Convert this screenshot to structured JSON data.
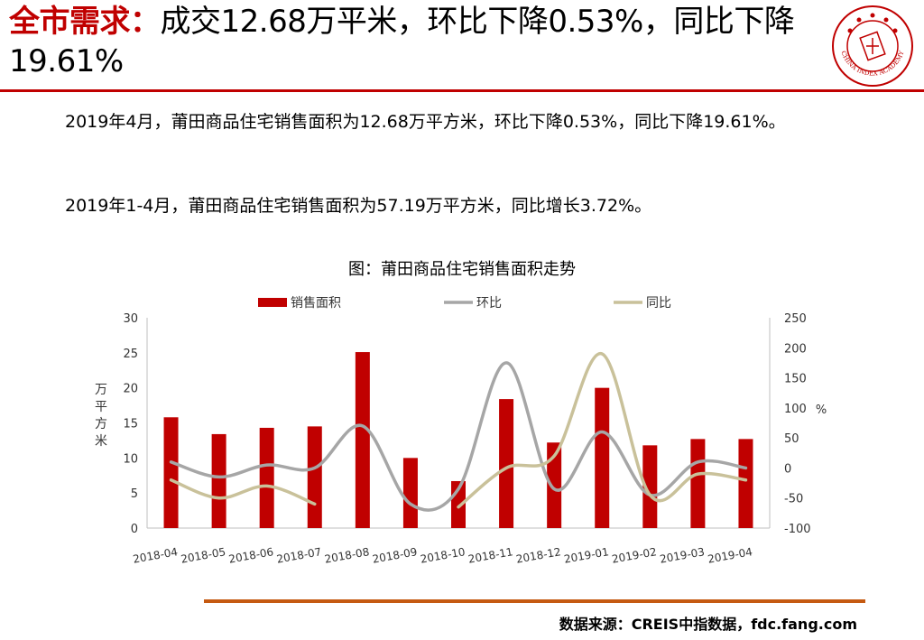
{
  "title": {
    "highlight": "全市需求：",
    "rest": "成交12.68万平米，环比下降0.53%，同比下降19.61%"
  },
  "logo": {
    "icon": "china-index-academy-seal-icon",
    "text": "CHINA INDEX ACADEMY"
  },
  "paragraphs": [
    "2019年4月，莆田商品住宅销售面积为12.68万平方米，环比下降0.53%，同比下降19.61%。",
    "2019年1-4月，莆田商品住宅销售面积为57.19万平方米，同比增长3.72%。"
  ],
  "source": "数据来源：CREIS中指数据，fdc.fang.com",
  "colors": {
    "accent": "#c00000",
    "bar": "#c00000",
    "mom": "#a6a6a6",
    "yoy": "#c9c19a",
    "rule": "#c55a11"
  },
  "chart_data": {
    "type": "bar",
    "title": "图：莆田商品住宅销售面积走势",
    "categories": [
      "2018-04",
      "2018-05",
      "2018-06",
      "2018-07",
      "2018-08",
      "2018-09",
      "2018-10",
      "2018-11",
      "2018-12",
      "2019-01",
      "2019-02",
      "2019-03",
      "2019-04"
    ],
    "ylabel_left": "万平方米",
    "ylabel_right": "%",
    "ylim_left": [
      0,
      30
    ],
    "yticks_left": [
      0,
      5,
      10,
      15,
      20,
      25,
      30
    ],
    "ylim_right": [
      -100,
      250
    ],
    "yticks_right": [
      -100,
      -50,
      0,
      50,
      100,
      150,
      200,
      250
    ],
    "legend_position": "top",
    "grid": false,
    "series": [
      {
        "name": "销售面积",
        "type": "bar",
        "axis": "left",
        "values": [
          15.8,
          13.4,
          14.3,
          14.5,
          25.1,
          10.0,
          6.7,
          18.4,
          12.2,
          20.0,
          11.8,
          12.7,
          12.7
        ]
      },
      {
        "name": "环比",
        "type": "line",
        "axis": "right",
        "values": [
          10,
          -15,
          5,
          0,
          70,
          -60,
          -35,
          175,
          -35,
          60,
          -45,
          10,
          0
        ]
      },
      {
        "name": "同比",
        "type": "line",
        "axis": "right",
        "values": [
          -20,
          -50,
          -30,
          -60,
          null,
          null,
          -65,
          0,
          20,
          190,
          -45,
          -10,
          -20
        ]
      }
    ]
  }
}
